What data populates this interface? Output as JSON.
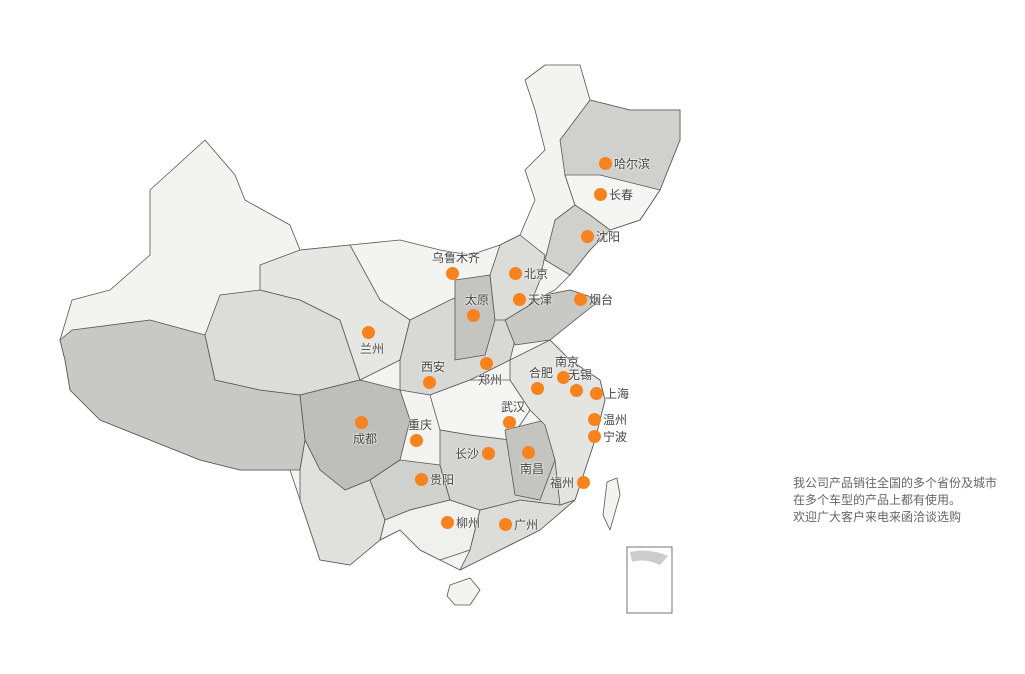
{
  "colors": {
    "marker": "#f7821e",
    "land_light": "#f3f3f0",
    "land_mid": "#dcdcd8",
    "land_dark": "#c8c8c4",
    "border": "#555555"
  },
  "cities": [
    {
      "name": "哈尔滨",
      "pos": "right"
    },
    {
      "name": "长春",
      "pos": "right"
    },
    {
      "name": "沈阳",
      "pos": "right"
    },
    {
      "name": "乌鲁木齐",
      "pos": "above"
    },
    {
      "name": "北京",
      "pos": "right"
    },
    {
      "name": "天津",
      "pos": "right"
    },
    {
      "name": "烟台",
      "pos": "right"
    },
    {
      "name": "太原",
      "pos": "above"
    },
    {
      "name": "兰州",
      "pos": "below"
    },
    {
      "name": "西安",
      "pos": "above"
    },
    {
      "name": "郑州",
      "pos": "below"
    },
    {
      "name": "合肥",
      "pos": "above"
    },
    {
      "name": "南京",
      "pos": "above"
    },
    {
      "name": "无锡",
      "pos": "above"
    },
    {
      "name": "上海",
      "pos": "right"
    },
    {
      "name": "武汉",
      "pos": "above"
    },
    {
      "name": "温州",
      "pos": "right"
    },
    {
      "name": "宁波",
      "pos": "right"
    },
    {
      "name": "成都",
      "pos": "below"
    },
    {
      "name": "重庆",
      "pos": "above"
    },
    {
      "name": "长沙",
      "pos": "left"
    },
    {
      "name": "南昌",
      "pos": "below"
    },
    {
      "name": "福州",
      "pos": "left"
    },
    {
      "name": "贵阳",
      "pos": "right"
    },
    {
      "name": "柳州",
      "pos": "right"
    },
    {
      "name": "广州",
      "pos": "right"
    }
  ],
  "info": {
    "line1": "我公司产品销往全国的多个省份及城市",
    "line2": "在多个车型的产品上都有使用。",
    "line3": "欢迎广大客户来电来函洽谈选购"
  }
}
